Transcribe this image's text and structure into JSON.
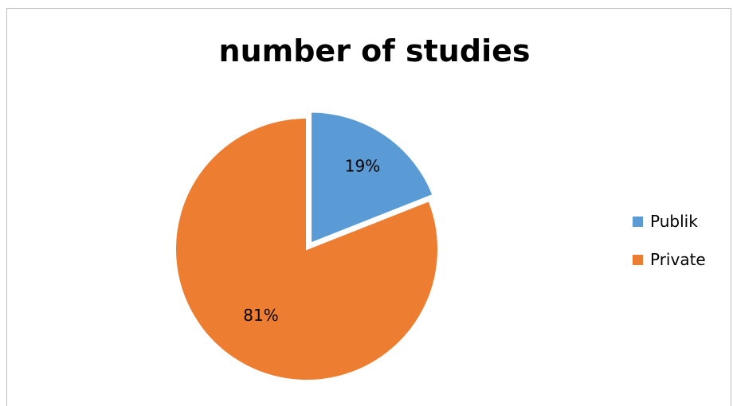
{
  "chart_data": {
    "type": "pie",
    "title": "number of studies",
    "categories": [
      "Publik",
      "Private"
    ],
    "values": [
      19,
      81
    ],
    "labels": [
      "19%",
      "81%"
    ],
    "colors": [
      "#5b9bd5",
      "#ed7d31"
    ],
    "exploded": [
      "Publik"
    ],
    "legend_position": "right"
  }
}
